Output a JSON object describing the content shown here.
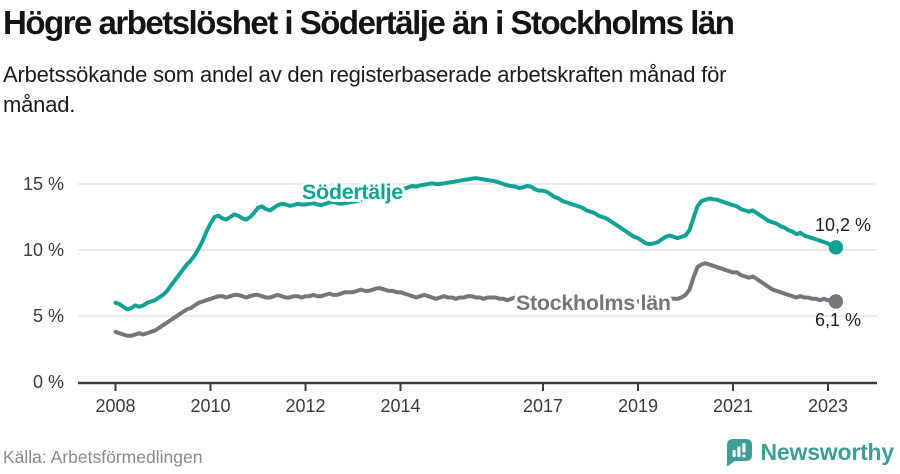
{
  "chart_data": {
    "type": "line",
    "title": "Högre arbetslöshet i Södertälje än i Stockholms län",
    "subtitle": "Arbetssökande som andel av den registerbaserade arbetskraften månad för månad.",
    "source": "Källa: Arbetsförmedlingen",
    "brand": "Newsworthy",
    "x_start": 2008.0,
    "x_interval": "monthly",
    "xlim": [
      2007.2,
      2024.1
    ],
    "ylim": [
      0,
      16.8
    ],
    "grid": "horizontal",
    "x_ticks": [
      "2008",
      "2010",
      "2012",
      "2014",
      "2017",
      "2019",
      "2021",
      "2023"
    ],
    "y_ticks": [
      {
        "value": 0,
        "label": "0 %"
      },
      {
        "value": 5,
        "label": "5 %"
      },
      {
        "value": 10,
        "label": "10 %"
      },
      {
        "value": 15,
        "label": "15 %"
      }
    ],
    "series": [
      {
        "name": "Södertälje",
        "color": "#10a293",
        "end_label": "10,2 %",
        "end_value": 10.2,
        "values": [
          6.0,
          5.9,
          5.7,
          5.5,
          5.6,
          5.8,
          5.7,
          5.8,
          6.0,
          6.1,
          6.2,
          6.4,
          6.6,
          6.9,
          7.3,
          7.7,
          8.1,
          8.5,
          8.9,
          9.2,
          9.6,
          10.1,
          10.7,
          11.4,
          12.0,
          12.5,
          12.6,
          12.4,
          12.3,
          12.5,
          12.7,
          12.6,
          12.4,
          12.3,
          12.5,
          12.8,
          13.2,
          13.3,
          13.1,
          13.0,
          13.2,
          13.4,
          13.5,
          13.45,
          13.35,
          13.4,
          13.5,
          13.45,
          13.45,
          13.5,
          13.55,
          13.45,
          13.4,
          13.5,
          13.6,
          13.65,
          13.55,
          13.5,
          13.55,
          13.6,
          13.65,
          13.7,
          13.8,
          13.9,
          14.0,
          14.1,
          14.2,
          14.3,
          14.35,
          14.4,
          14.45,
          14.5,
          14.55,
          14.65,
          14.75,
          14.85,
          14.8,
          14.9,
          14.95,
          15.0,
          15.05,
          15.0,
          15.0,
          15.05,
          15.1,
          15.15,
          15.2,
          15.25,
          15.3,
          15.35,
          15.4,
          15.45,
          15.4,
          15.35,
          15.3,
          15.25,
          15.2,
          15.1,
          15.0,
          14.9,
          14.85,
          14.8,
          14.7,
          14.75,
          14.85,
          14.8,
          14.6,
          14.5,
          14.5,
          14.4,
          14.2,
          14.0,
          13.9,
          13.7,
          13.6,
          13.5,
          13.4,
          13.3,
          13.2,
          13.0,
          12.9,
          12.8,
          12.6,
          12.5,
          12.4,
          12.2,
          12.0,
          11.8,
          11.6,
          11.4,
          11.2,
          11.0,
          10.9,
          10.7,
          10.5,
          10.45,
          10.5,
          10.6,
          10.8,
          11.0,
          11.1,
          11.0,
          10.9,
          11.0,
          11.1,
          11.5,
          12.4,
          13.3,
          13.7,
          13.8,
          13.9,
          13.85,
          13.8,
          13.7,
          13.6,
          13.5,
          13.4,
          13.3,
          13.1,
          13.0,
          12.9,
          13.0,
          12.8,
          12.6,
          12.4,
          12.2,
          12.1,
          12.0,
          11.8,
          11.7,
          11.5,
          11.4,
          11.2,
          11.3,
          11.1,
          11.0,
          10.9,
          10.8,
          10.7,
          10.6,
          10.5,
          10.3,
          10.2
        ]
      },
      {
        "name": "Stockholms län",
        "color": "#75757a",
        "end_label": "6,1 %",
        "end_value": 6.1,
        "values": [
          3.8,
          3.7,
          3.6,
          3.5,
          3.5,
          3.6,
          3.7,
          3.6,
          3.7,
          3.8,
          3.9,
          4.1,
          4.3,
          4.5,
          4.7,
          4.9,
          5.1,
          5.3,
          5.5,
          5.6,
          5.8,
          6.0,
          6.1,
          6.2,
          6.3,
          6.4,
          6.5,
          6.5,
          6.4,
          6.5,
          6.6,
          6.6,
          6.5,
          6.4,
          6.5,
          6.6,
          6.6,
          6.5,
          6.4,
          6.4,
          6.5,
          6.6,
          6.5,
          6.4,
          6.4,
          6.5,
          6.5,
          6.4,
          6.5,
          6.5,
          6.6,
          6.5,
          6.5,
          6.6,
          6.7,
          6.6,
          6.6,
          6.7,
          6.8,
          6.8,
          6.8,
          6.9,
          7.0,
          6.9,
          6.9,
          7.0,
          7.1,
          7.1,
          7.0,
          6.9,
          6.9,
          6.8,
          6.8,
          6.7,
          6.6,
          6.5,
          6.4,
          6.5,
          6.6,
          6.5,
          6.4,
          6.3,
          6.4,
          6.5,
          6.4,
          6.4,
          6.3,
          6.4,
          6.4,
          6.5,
          6.5,
          6.4,
          6.4,
          6.3,
          6.4,
          6.4,
          6.4,
          6.3,
          6.3,
          6.2,
          6.3,
          6.4,
          6.4,
          6.3,
          6.3,
          6.2,
          6.3,
          6.3,
          6.3,
          6.3,
          6.2,
          6.2,
          6.3,
          6.3,
          6.2,
          6.2,
          6.1,
          6.1,
          6.2,
          6.2,
          6.1,
          6.1,
          6.0,
          6.0,
          6.1,
          6.1,
          6.0,
          6.0,
          6.1,
          6.1,
          6.0,
          6.1,
          6.1,
          6.1,
          6.1,
          6.2,
          6.2,
          6.3,
          6.2,
          6.2,
          6.3,
          6.3,
          6.3,
          6.4,
          6.6,
          7.0,
          7.9,
          8.7,
          8.9,
          9.0,
          8.9,
          8.8,
          8.7,
          8.6,
          8.5,
          8.4,
          8.3,
          8.3,
          8.1,
          8.0,
          7.9,
          8.0,
          7.8,
          7.6,
          7.4,
          7.2,
          7.0,
          6.9,
          6.8,
          6.7,
          6.6,
          6.5,
          6.4,
          6.5,
          6.4,
          6.4,
          6.3,
          6.3,
          6.2,
          6.3,
          6.2,
          6.2,
          6.1
        ]
      }
    ]
  },
  "colors": {
    "axis": "#3b3b3b",
    "grid": "#e3e3e3",
    "tick_text": "#3a3a3a",
    "annotation_text": "#1f1f1f",
    "muted_text": "#8a8a8a",
    "brand_teal": "#3f9d95"
  }
}
